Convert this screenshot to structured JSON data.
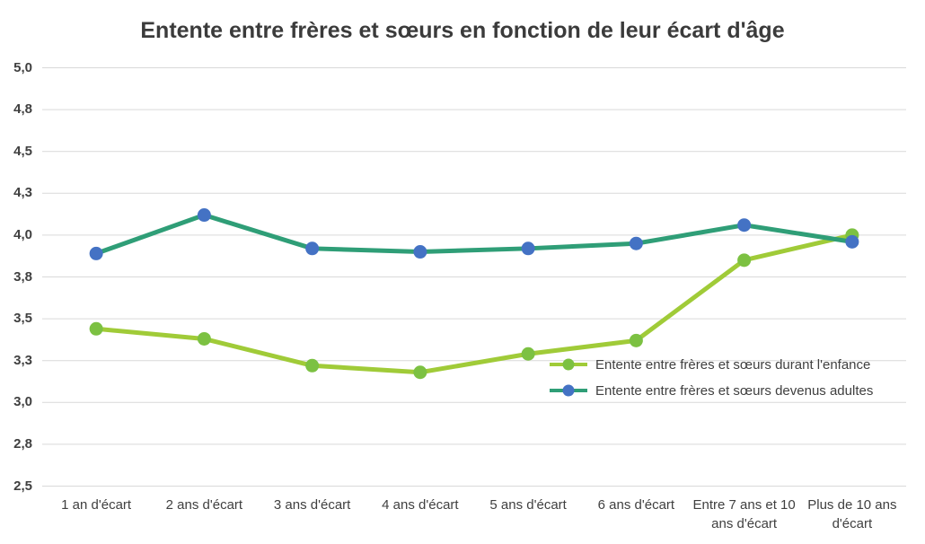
{
  "title": "Entente entre frères et sœurs en fonction de leur écart d'âge",
  "chart_data": {
    "type": "line",
    "title": "Entente entre frères et sœurs en fonction de leur écart d'âge",
    "xlabel": "",
    "ylabel": "",
    "grid": true,
    "grid_color": "#d9d9d9",
    "ylim": [
      2.5,
      5.0
    ],
    "legend_position": "inside-right",
    "categories": [
      "1 an d'écart",
      "2 ans d'écart",
      "3 ans d'écart",
      "4 ans d'écart",
      "5 ans d'écart",
      "6 ans d'écart",
      "Entre 7 ans et 10 ans d'écart",
      "Plus de 10 ans d'écart"
    ],
    "series": [
      {
        "name": "Entente entre frères et sœurs durant l'enfance",
        "line_color": "#a0cb38",
        "marker_color": "#7cc142",
        "values": [
          3.44,
          3.38,
          3.22,
          3.18,
          3.29,
          3.37,
          3.85,
          4.0
        ]
      },
      {
        "name": "Entente entre frères et sœurs devenus adultes",
        "line_color": "#2f9e77",
        "marker_color": "#4472c4",
        "values": [
          3.89,
          4.12,
          3.92,
          3.9,
          3.92,
          3.95,
          4.06,
          3.96
        ]
      }
    ],
    "y_ticks": [
      {
        "label": "5,0",
        "value": 5.0
      },
      {
        "label": "4,8",
        "value": 4.75
      },
      {
        "label": "4,5",
        "value": 4.5
      },
      {
        "label": "4,3",
        "value": 4.25
      },
      {
        "label": "4,0",
        "value": 4.0
      },
      {
        "label": "3,8",
        "value": 3.75
      },
      {
        "label": "3,5",
        "value": 3.5
      },
      {
        "label": "3,3",
        "value": 3.25
      },
      {
        "label": "3,0",
        "value": 3.0
      },
      {
        "label": "2,8",
        "value": 2.75
      },
      {
        "label": "2,5",
        "value": 2.5
      }
    ]
  },
  "colors": {
    "title_text": "#3b3b3b",
    "axis_text": "#404040",
    "background": "#ffffff"
  }
}
